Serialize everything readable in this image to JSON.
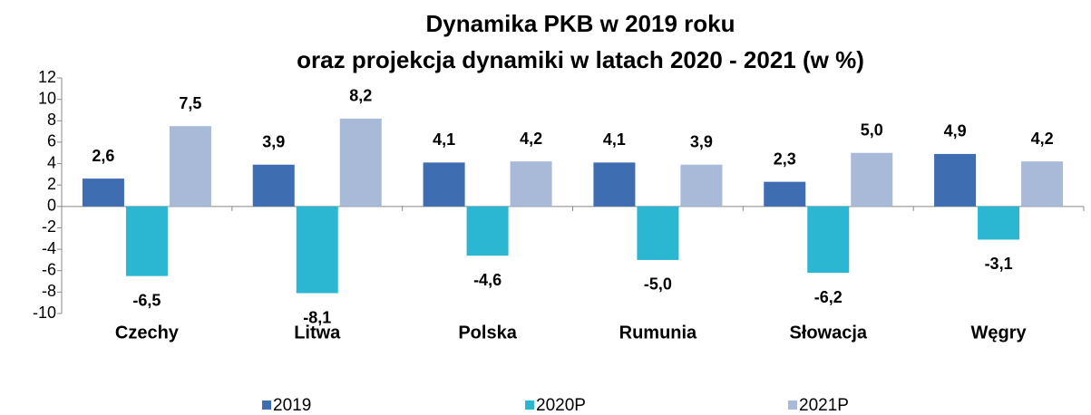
{
  "chart_data": {
    "type": "bar",
    "title": [
      "Dynamika PKB w 2019 roku",
      "oraz projekcja dynamiki w latach 2020 - 2021 (w %)"
    ],
    "categories": [
      "Czechy",
      "Litwa",
      "Polska",
      "Rumunia",
      "Słowacja",
      "Węgry"
    ],
    "series": [
      {
        "name": "2019",
        "color": "#3f6db1",
        "values": [
          2.6,
          3.9,
          4.1,
          4.1,
          2.3,
          4.9
        ],
        "value_labels": [
          "2,6",
          "3,9",
          "4,1",
          "4,1",
          "2,3",
          "4,9"
        ]
      },
      {
        "name": "2020P",
        "color": "#2bb6d1",
        "values": [
          -6.5,
          -8.1,
          -4.6,
          -5.0,
          -6.2,
          -3.1
        ],
        "value_labels": [
          "-6,5",
          "-8,1",
          "-4,6",
          "-5,0",
          "-6,2",
          "-3,1"
        ]
      },
      {
        "name": "2021P",
        "color": "#a9b9d8",
        "values": [
          7.5,
          8.2,
          4.2,
          3.9,
          5.0,
          4.2
        ],
        "value_labels": [
          "7,5",
          "8,2",
          "4,2",
          "3,9",
          "5,0",
          "4,2"
        ]
      }
    ],
    "ylim": [
      -10,
      12
    ],
    "yticks": [
      -10,
      -8,
      -6,
      -4,
      -2,
      0,
      2,
      4,
      6,
      8,
      10,
      12
    ],
    "grid": false,
    "legend": "bottom"
  }
}
